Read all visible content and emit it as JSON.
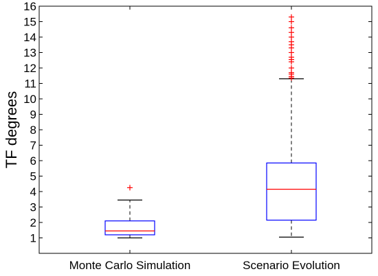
{
  "chart_data": {
    "type": "box",
    "title": "",
    "xlabel": "",
    "ylabel": "TF degrees",
    "ylim": [
      0,
      16
    ],
    "yticks": [
      1,
      2,
      3,
      4,
      5,
      6,
      7,
      8,
      9,
      10,
      11,
      12,
      13,
      14,
      15,
      16
    ],
    "grid": false,
    "categories": [
      "Monte Carlo Simulation",
      "Scenario Evolution"
    ],
    "boxes": [
      {
        "category": "Monte Carlo Simulation",
        "whisker_low": 1.0,
        "q1": 1.2,
        "median": 1.45,
        "q3": 2.1,
        "whisker_high": 3.45,
        "outliers": [
          4.25
        ]
      },
      {
        "category": "Scenario Evolution",
        "whisker_low": 1.05,
        "q1": 2.15,
        "median": 4.15,
        "q3": 5.85,
        "whisker_high": 11.3,
        "outliers": [
          11.35,
          11.45,
          11.6,
          11.7,
          12.0,
          12.4,
          12.55,
          12.7,
          13.0,
          13.3,
          13.5,
          13.7,
          14.0,
          14.3,
          14.6,
          15.0,
          15.3
        ]
      }
    ],
    "colors": {
      "box": "#0000ff",
      "median": "#ff0000",
      "outlier": "#ff0000",
      "whisker": "#000000"
    }
  }
}
